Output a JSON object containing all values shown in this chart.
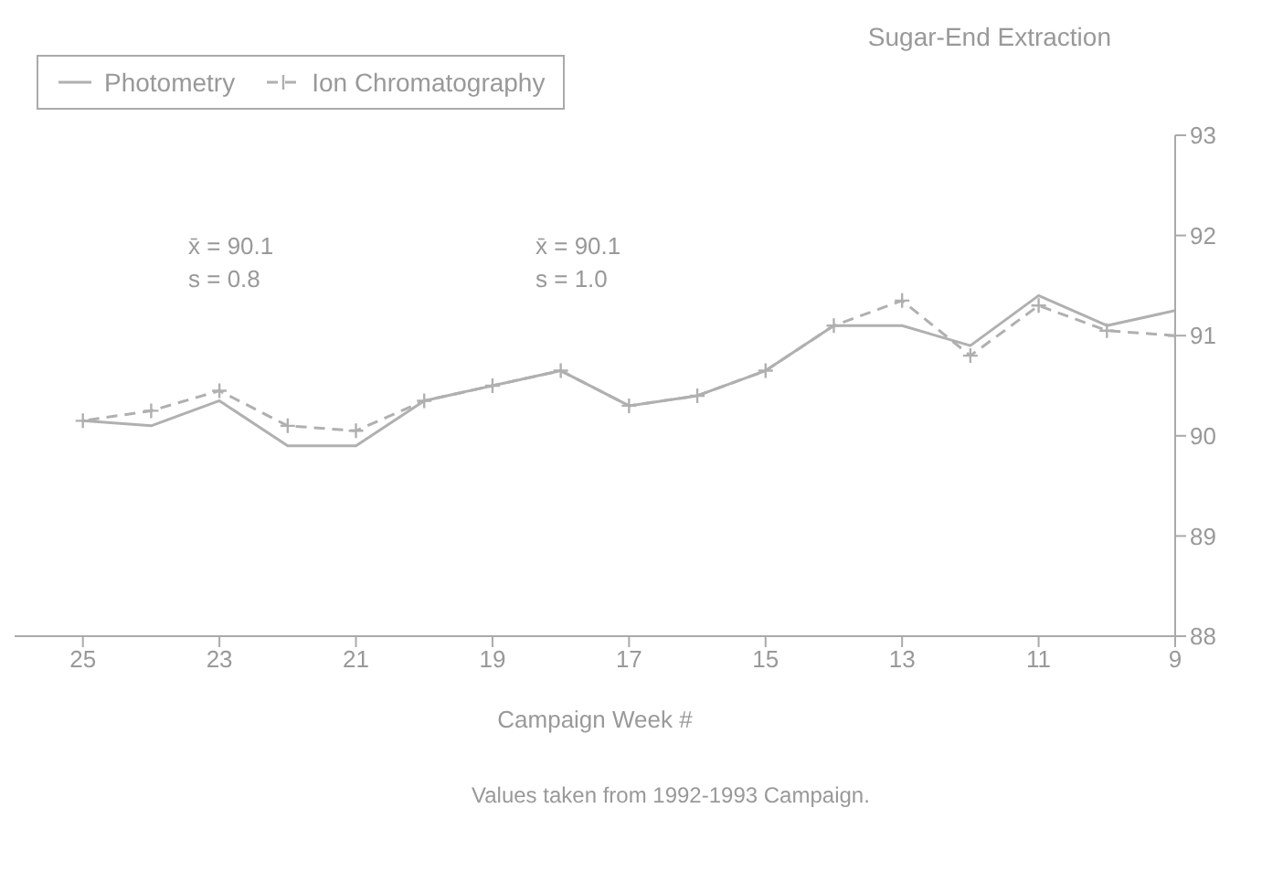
{
  "chart_data": {
    "type": "line",
    "title": "Sugar-End Extraction",
    "xlabel": "Campaign Week #",
    "x": [
      9,
      10,
      11,
      12,
      13,
      14,
      15,
      16,
      17,
      18,
      19,
      20,
      21,
      22,
      23,
      24,
      25
    ],
    "series": [
      {
        "name": "Photometry",
        "color": "#b0b0b0",
        "marker": "none",
        "line_style": "solid",
        "values": [
          91.25,
          91.1,
          91.4,
          90.9,
          91.1,
          91.1,
          90.65,
          90.4,
          90.3,
          90.65,
          90.5,
          90.35,
          89.9,
          89.9,
          90.35,
          90.1,
          90.15
        ]
      },
      {
        "name": "Ion Chromatography",
        "color": "#b0b0b0",
        "marker": "cross",
        "line_style": "dashed",
        "values": [
          91.0,
          91.05,
          91.3,
          90.8,
          91.35,
          91.1,
          90.65,
          90.4,
          90.3,
          90.65,
          90.5,
          90.35,
          90.05,
          90.1,
          90.45,
          90.25,
          90.15
        ]
      }
    ],
    "xlim": [
      26,
      9
    ],
    "xticks": [
      9,
      11,
      13,
      15,
      17,
      19,
      21,
      23,
      25
    ],
    "ylim": [
      88,
      93
    ],
    "yticks": [
      88,
      89,
      90,
      91,
      92,
      93
    ],
    "legend": "top left",
    "annotations": [
      "x̄ = 90.1",
      "s = 0.8",
      "x̄ = 90.1",
      "s = 1.0",
      "Values taken from 1992-1993 Campaign."
    ]
  }
}
